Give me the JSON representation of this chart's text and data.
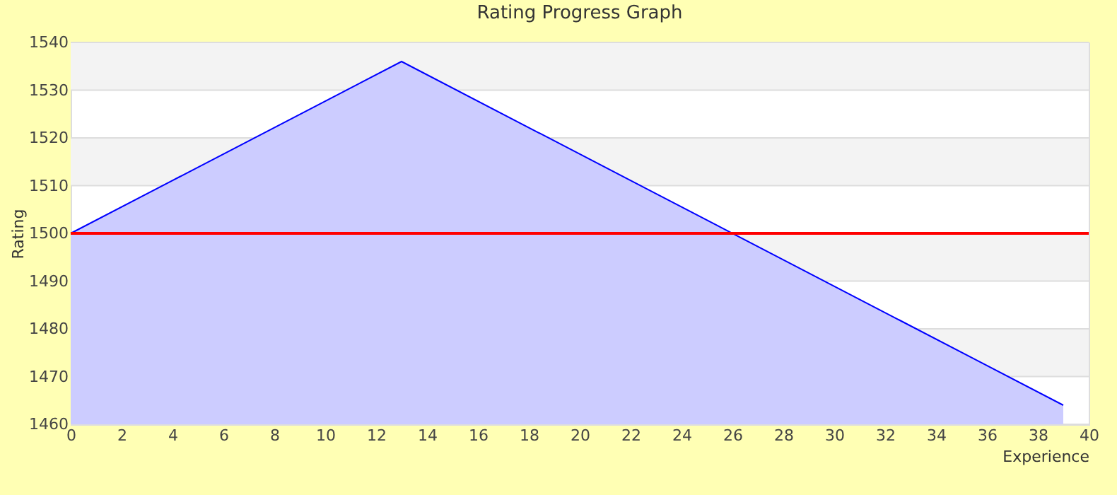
{
  "chart_data": {
    "type": "area",
    "title": "Rating Progress Graph",
    "xlabel": "Experience",
    "ylabel": "Rating",
    "x": [
      0,
      13,
      39
    ],
    "series": [
      {
        "color": "#0000ff",
        "values": [
          1500,
          1536,
          1464
        ]
      }
    ],
    "xlim": [
      0,
      40
    ],
    "xticks": [
      0,
      2,
      4,
      6,
      8,
      10,
      12,
      14,
      16,
      18,
      20,
      22,
      24,
      26,
      28,
      30,
      32,
      34,
      36,
      38,
      40
    ],
    "ylim": [
      1460,
      1540
    ],
    "yticks": [
      1460,
      1470,
      1480,
      1490,
      1500,
      1510,
      1520,
      1530,
      1540
    ],
    "ref_lines": [
      {
        "axis": "y",
        "value": 1500,
        "color": "#ff0000"
      }
    ],
    "grid": "y"
  }
}
